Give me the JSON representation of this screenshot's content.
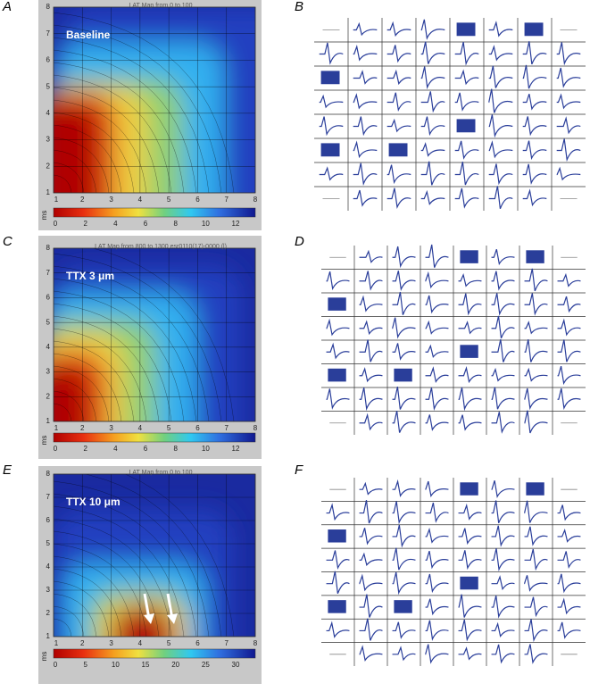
{
  "panels": [
    {
      "label": "A",
      "title": "LAT Map from  0 to 100",
      "condition": "Baseline",
      "xticks": [
        1,
        2,
        3,
        4,
        5,
        6,
        7,
        8
      ],
      "yticks": [
        1,
        2,
        3,
        4,
        5,
        6,
        7,
        8
      ],
      "colorbar_unit": "ms",
      "colorbar_ticks": [
        0,
        2,
        4,
        6,
        8,
        10,
        12
      ]
    },
    {
      "label": "B"
    },
    {
      "label": "C",
      "title": "LAT Map from  800 to 1300 esr0110(17)-0000 (l)",
      "condition": "TTX 3 μm",
      "xticks": [
        1,
        2,
        3,
        4,
        5,
        6,
        7,
        8
      ],
      "yticks": [
        1,
        2,
        3,
        4,
        5,
        6,
        7,
        8
      ],
      "colorbar_unit": "ms",
      "colorbar_ticks": [
        0,
        2,
        4,
        6,
        8,
        10,
        12
      ]
    },
    {
      "label": "D"
    },
    {
      "label": "E",
      "title": "LAT Map from  0 to 100",
      "condition": "TTX 10 μm",
      "xticks": [
        1,
        2,
        3,
        4,
        5,
        6,
        7,
        8
      ],
      "yticks": [
        1,
        2,
        3,
        4,
        5,
        6,
        7,
        8
      ],
      "colorbar_unit": "ms",
      "colorbar_ticks": [
        0,
        5,
        10,
        15,
        20,
        25,
        30
      ]
    },
    {
      "label": "F"
    }
  ]
}
